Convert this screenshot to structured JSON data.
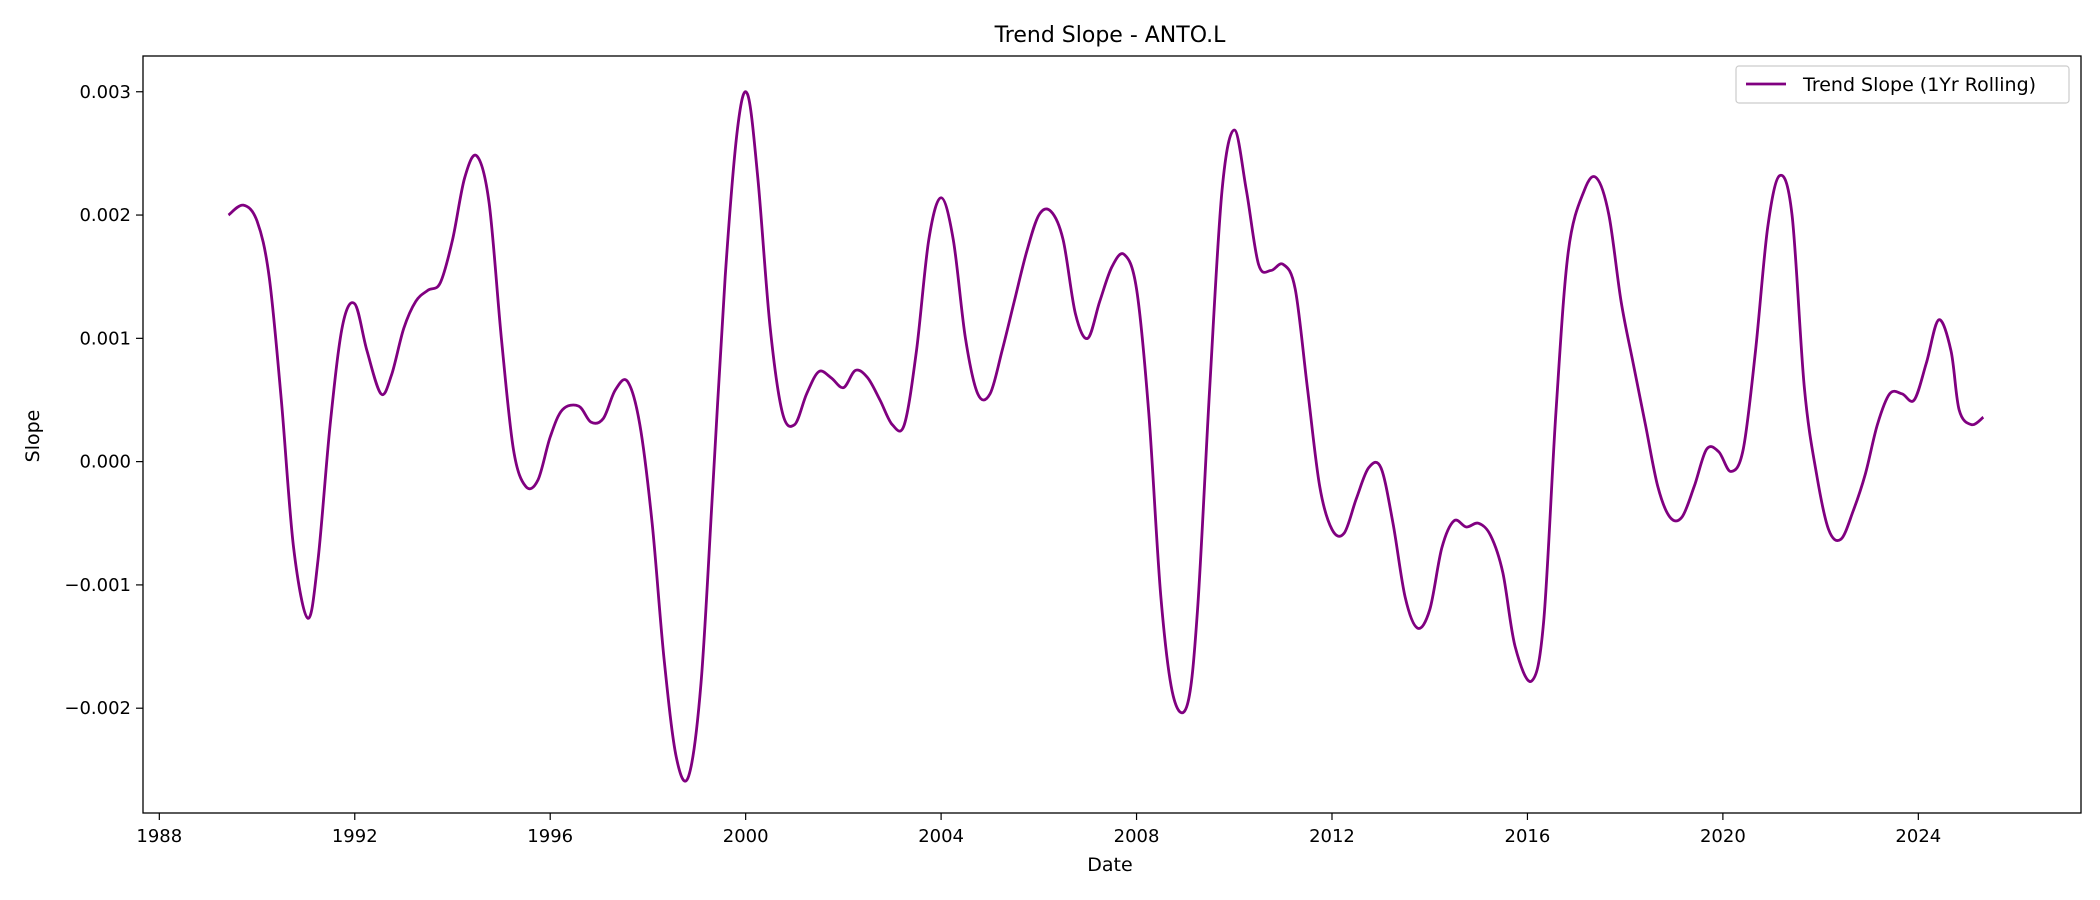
{
  "chart_data": {
    "type": "line",
    "title": "Trend Slope - ANTO.L",
    "xlabel": "Date",
    "ylabel": "Slope",
    "xlim": [
      "1987-09-01",
      "2027-05-01"
    ],
    "ylim": [
      -0.00285,
      0.00329
    ],
    "x_ticks": [
      {
        "value": "1988-01-01",
        "label": "1988"
      },
      {
        "value": "1992-01-01",
        "label": "1992"
      },
      {
        "value": "1996-01-01",
        "label": "1996"
      },
      {
        "value": "2000-01-01",
        "label": "2000"
      },
      {
        "value": "2004-01-01",
        "label": "2004"
      },
      {
        "value": "2008-01-01",
        "label": "2008"
      },
      {
        "value": "2012-01-01",
        "label": "2012"
      },
      {
        "value": "2016-01-01",
        "label": "2016"
      },
      {
        "value": "2020-01-01",
        "label": "2020"
      },
      {
        "value": "2024-01-01",
        "label": "2024"
      }
    ],
    "y_ticks": [
      {
        "value": 0.003,
        "label": "0.003"
      },
      {
        "value": 0.002,
        "label": "0.002"
      },
      {
        "value": 0.001,
        "label": "0.001"
      },
      {
        "value": 0.0,
        "label": "0.000"
      },
      {
        "value": -0.001,
        "label": "−0.001"
      },
      {
        "value": -0.002,
        "label": "−0.002"
      }
    ],
    "grid": false,
    "legend_position": "top-right",
    "series": [
      {
        "name": "Trend Slope (1Yr Rolling)",
        "color": "#800080",
        "points": [
          [
            "1989-06-01",
            0.002
          ],
          [
            "1989-09-20",
            0.00208
          ],
          [
            "1990-01-01",
            0.00195
          ],
          [
            "1990-04-01",
            0.0015
          ],
          [
            "1990-07-01",
            0.0005
          ],
          [
            "1990-10-01",
            -0.0007
          ],
          [
            "1991-01-15",
            -0.00127
          ],
          [
            "1991-04-01",
            -0.0008
          ],
          [
            "1991-07-01",
            0.0003
          ],
          [
            "1991-10-01",
            0.0011
          ],
          [
            "1992-01-01",
            0.00128
          ],
          [
            "1992-04-01",
            0.0009
          ],
          [
            "1992-07-15",
            0.00055
          ],
          [
            "1992-10-01",
            0.0007
          ],
          [
            "1993-01-01",
            0.00108
          ],
          [
            "1993-04-01",
            0.0013
          ],
          [
            "1993-07-01",
            0.00139
          ],
          [
            "1993-10-01",
            0.00145
          ],
          [
            "1994-01-01",
            0.0018
          ],
          [
            "1994-04-01",
            0.0023
          ],
          [
            "1994-07-01",
            0.00248
          ],
          [
            "1994-10-01",
            0.0021
          ],
          [
            "1995-01-01",
            0.001
          ],
          [
            "1995-04-01",
            0.0001
          ],
          [
            "1995-07-01",
            -0.0002
          ],
          [
            "1995-10-01",
            -0.00015
          ],
          [
            "1996-01-01",
            0.0002
          ],
          [
            "1996-04-01",
            0.00042
          ],
          [
            "1996-08-01",
            0.00045
          ],
          [
            "1996-11-01",
            0.00032
          ],
          [
            "1997-02-01",
            0.00035
          ],
          [
            "1997-05-01",
            0.00058
          ],
          [
            "1997-08-01",
            0.00065
          ],
          [
            "1997-11-01",
            0.0003
          ],
          [
            "1998-02-01",
            -0.0005
          ],
          [
            "1998-05-01",
            -0.0016
          ],
          [
            "1998-08-01",
            -0.0024
          ],
          [
            "1998-11-01",
            -0.00255
          ],
          [
            "1999-02-01",
            -0.0018
          ],
          [
            "1999-05-01",
            -0.0002
          ],
          [
            "1999-08-01",
            0.0015
          ],
          [
            "1999-11-01",
            0.0027
          ],
          [
            "2000-01-15",
            0.00298
          ],
          [
            "2000-04-01",
            0.0023
          ],
          [
            "2000-07-01",
            0.0011
          ],
          [
            "2000-10-01",
            0.0004
          ],
          [
            "2001-01-01",
            0.0003
          ],
          [
            "2001-04-01",
            0.00055
          ],
          [
            "2001-07-01",
            0.00073
          ],
          [
            "2001-10-01",
            0.00068
          ],
          [
            "2002-01-01",
            0.0006
          ],
          [
            "2002-04-01",
            0.00074
          ],
          [
            "2002-07-01",
            0.00068
          ],
          [
            "2002-10-01",
            0.0005
          ],
          [
            "2003-01-01",
            0.0003
          ],
          [
            "2003-04-01",
            0.0003
          ],
          [
            "2003-07-01",
            0.0009
          ],
          [
            "2003-10-01",
            0.0018
          ],
          [
            "2004-01-01",
            0.00214
          ],
          [
            "2004-04-01",
            0.0018
          ],
          [
            "2004-07-01",
            0.001
          ],
          [
            "2004-10-01",
            0.00055
          ],
          [
            "2005-01-01",
            0.00055
          ],
          [
            "2005-04-01",
            0.0009
          ],
          [
            "2005-07-01",
            0.0013
          ],
          [
            "2005-10-01",
            0.0017
          ],
          [
            "2006-01-01",
            0.002
          ],
          [
            "2006-04-01",
            0.00203
          ],
          [
            "2006-07-01",
            0.0018
          ],
          [
            "2006-10-01",
            0.0012
          ],
          [
            "2007-01-01",
            0.001
          ],
          [
            "2007-04-01",
            0.0013
          ],
          [
            "2007-07-01",
            0.00158
          ],
          [
            "2007-10-01",
            0.00168
          ],
          [
            "2008-01-01",
            0.0014
          ],
          [
            "2008-04-01",
            0.0004
          ],
          [
            "2008-07-01",
            -0.0011
          ],
          [
            "2008-10-01",
            -0.0019
          ],
          [
            "2009-01-15",
            -0.00197
          ],
          [
            "2009-04-01",
            -0.0012
          ],
          [
            "2009-07-01",
            0.0006
          ],
          [
            "2009-10-01",
            0.0022
          ],
          [
            "2010-01-01",
            0.00269
          ],
          [
            "2010-04-01",
            0.0022
          ],
          [
            "2010-07-01",
            0.0016
          ],
          [
            "2010-10-01",
            0.00155
          ],
          [
            "2011-01-01",
            0.0016
          ],
          [
            "2011-04-01",
            0.0014
          ],
          [
            "2011-07-01",
            0.0006
          ],
          [
            "2011-10-01",
            -0.0002
          ],
          [
            "2012-01-01",
            -0.00055
          ],
          [
            "2012-04-01",
            -0.00058
          ],
          [
            "2012-07-01",
            -0.0003
          ],
          [
            "2012-10-01",
            -5e-05
          ],
          [
            "2013-01-01",
            -5e-05
          ],
          [
            "2013-04-01",
            -0.0005
          ],
          [
            "2013-07-01",
            -0.0011
          ],
          [
            "2013-10-01",
            -0.00135
          ],
          [
            "2014-01-01",
            -0.0012
          ],
          [
            "2014-04-01",
            -0.0007
          ],
          [
            "2014-07-01",
            -0.00048
          ],
          [
            "2014-10-01",
            -0.00053
          ],
          [
            "2015-01-01",
            -0.0005
          ],
          [
            "2015-04-01",
            -0.0006
          ],
          [
            "2015-07-01",
            -0.0009
          ],
          [
            "2015-10-01",
            -0.0015
          ],
          [
            "2016-02-01",
            -0.00178
          ],
          [
            "2016-05-01",
            -0.0013
          ],
          [
            "2016-08-01",
            0.0004
          ],
          [
            "2016-11-01",
            0.0017
          ],
          [
            "2017-03-01",
            0.0022
          ],
          [
            "2017-06-01",
            0.0023
          ],
          [
            "2017-09-01",
            0.002
          ],
          [
            "2017-12-01",
            0.0013
          ],
          [
            "2018-03-01",
            0.0008
          ],
          [
            "2018-06-01",
            0.0003
          ],
          [
            "2018-09-01",
            -0.0002
          ],
          [
            "2018-12-01",
            -0.00045
          ],
          [
            "2019-03-01",
            -0.00045
          ],
          [
            "2019-06-01",
            -0.0002
          ],
          [
            "2019-09-01",
            0.0001
          ],
          [
            "2019-12-01",
            8e-05
          ],
          [
            "2020-03-01",
            -8e-05
          ],
          [
            "2020-06-01",
            0.0001
          ],
          [
            "2020-09-01",
            0.0009
          ],
          [
            "2020-12-01",
            0.0019
          ],
          [
            "2021-03-01",
            0.00232
          ],
          [
            "2021-06-01",
            0.002
          ],
          [
            "2021-09-01",
            0.0006
          ],
          [
            "2021-12-01",
            -0.0001
          ],
          [
            "2022-03-01",
            -0.00055
          ],
          [
            "2022-06-01",
            -0.00063
          ],
          [
            "2022-09-01",
            -0.0004
          ],
          [
            "2022-12-01",
            -0.0001
          ],
          [
            "2023-03-01",
            0.0003
          ],
          [
            "2023-06-01",
            0.00055
          ],
          [
            "2023-09-01",
            0.00055
          ],
          [
            "2023-12-01",
            0.0005
          ],
          [
            "2024-03-01",
            0.0008
          ],
          [
            "2024-06-01",
            0.00115
          ],
          [
            "2024-09-01",
            0.0009
          ],
          [
            "2024-11-01",
            0.00042
          ],
          [
            "2025-02-01",
            0.0003
          ],
          [
            "2025-05-01",
            0.00036
          ]
        ]
      }
    ]
  }
}
